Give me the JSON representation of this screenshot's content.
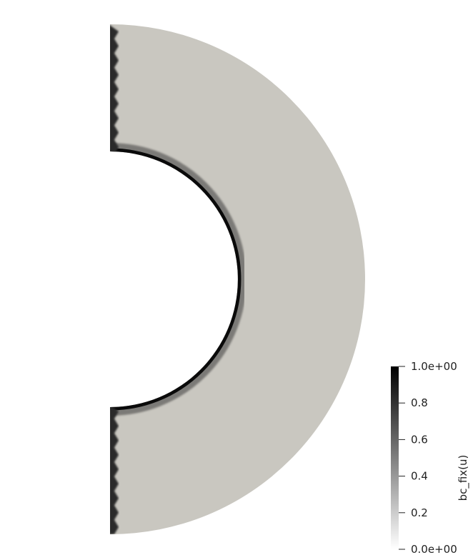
{
  "chart_data": {
    "type": "heatmap",
    "title": "",
    "field_name": "bc_fix(u)",
    "colormap": "grayscale (white at 0, black at 1)",
    "range": [
      0.0,
      1.0
    ],
    "colorbar": {
      "label": "bc_fix(u)",
      "placement": "bottom-right, vertical",
      "ticks": [
        {
          "value": 1.0,
          "label": "1.0e+00"
        },
        {
          "value": 0.8,
          "label": "0.8"
        },
        {
          "value": 0.6,
          "label": "0.6"
        },
        {
          "value": 0.4,
          "label": "0.4"
        },
        {
          "value": 0.2,
          "label": "0.2"
        },
        {
          "value": 0.0,
          "label": "0.0e+00"
        }
      ]
    },
    "domain": {
      "shape": "half annulus (right half), flat edge on the left",
      "interior_color": "#c9c7c0",
      "boundary_value": 1.0,
      "boundaries_with_value_1": [
        "inner arc",
        "left flat edge (upper segment)",
        "left flat edge (lower segment)"
      ],
      "outer_arc_value": 0.0
    }
  }
}
